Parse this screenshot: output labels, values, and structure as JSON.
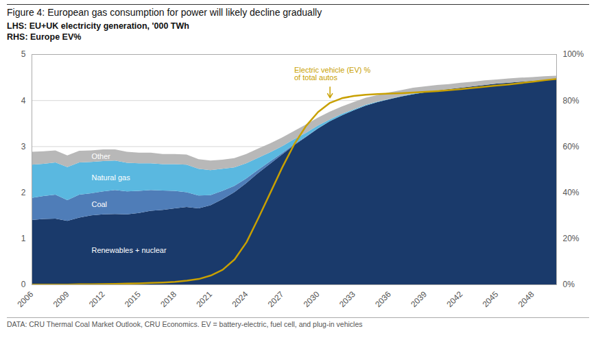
{
  "chart_data": {
    "type": "area",
    "title": "Figure 4: European gas consumption for power will likely decline gradually",
    "ylabel": "LHS: EU+UK electricity generation, '000 TWh",
    "y2label": "RHS: Europe EV%",
    "caption": "DATA: CRU Thermal Coal Market Outlook, CRU Economics. EV = battery-electric, fuel cell, and plug-in vehicles",
    "stacked": true,
    "grid": true,
    "x": [
      2006,
      2007,
      2008,
      2009,
      2010,
      2011,
      2012,
      2013,
      2014,
      2015,
      2016,
      2017,
      2018,
      2019,
      2020,
      2021,
      2022,
      2023,
      2024,
      2025,
      2026,
      2027,
      2028,
      2029,
      2030,
      2031,
      2032,
      2033,
      2034,
      2035,
      2036,
      2037,
      2038,
      2039,
      2040,
      2041,
      2042,
      2043,
      2044,
      2045,
      2046,
      2047,
      2048,
      2049,
      2050
    ],
    "series": [
      {
        "name": "Renewables + nuclear",
        "type": "area",
        "color": "#1a3a6b",
        "values": [
          1.4,
          1.42,
          1.43,
          1.38,
          1.45,
          1.5,
          1.52,
          1.53,
          1.52,
          1.55,
          1.6,
          1.62,
          1.65,
          1.68,
          1.65,
          1.72,
          1.85,
          2.0,
          2.2,
          2.42,
          2.62,
          2.82,
          3.02,
          3.2,
          3.38,
          3.54,
          3.67,
          3.78,
          3.88,
          3.96,
          4.02,
          4.08,
          4.13,
          4.17,
          4.21,
          4.24,
          4.27,
          4.3,
          4.33,
          4.36,
          4.38,
          4.4,
          4.42,
          4.44,
          4.46
        ]
      },
      {
        "name": "Coal",
        "type": "area",
        "color": "#4f7db8",
        "values": [
          0.48,
          0.5,
          0.52,
          0.45,
          0.5,
          0.48,
          0.5,
          0.52,
          0.5,
          0.48,
          0.45,
          0.42,
          0.38,
          0.32,
          0.28,
          0.22,
          0.18,
          0.14,
          0.1,
          0.07,
          0.05,
          0.03,
          0.02,
          0.01,
          0.01,
          0.0,
          0.0,
          0.0,
          0.0,
          0.0,
          0.0,
          0.0,
          0.0,
          0.0,
          0.0,
          0.0,
          0.0,
          0.0,
          0.0,
          0.0,
          0.0,
          0.0,
          0.0,
          0.0,
          0.0
        ]
      },
      {
        "name": "Natural gas",
        "type": "area",
        "color": "#5ab8e0",
        "values": [
          0.72,
          0.7,
          0.7,
          0.72,
          0.7,
          0.68,
          0.66,
          0.64,
          0.62,
          0.6,
          0.58,
          0.57,
          0.58,
          0.6,
          0.58,
          0.54,
          0.48,
          0.4,
          0.33,
          0.26,
          0.2,
          0.15,
          0.11,
          0.08,
          0.06,
          0.04,
          0.03,
          0.02,
          0.02,
          0.01,
          0.01,
          0.01,
          0.01,
          0.01,
          0.0,
          0.0,
          0.0,
          0.0,
          0.0,
          0.0,
          0.0,
          0.0,
          0.0,
          0.0,
          0.0
        ]
      },
      {
        "name": "Other",
        "type": "area",
        "color": "#b8b8b8",
        "values": [
          0.28,
          0.27,
          0.26,
          0.25,
          0.25,
          0.25,
          0.25,
          0.24,
          0.24,
          0.23,
          0.23,
          0.22,
          0.22,
          0.22,
          0.21,
          0.21,
          0.2,
          0.2,
          0.2,
          0.2,
          0.19,
          0.19,
          0.18,
          0.18,
          0.17,
          0.17,
          0.16,
          0.16,
          0.15,
          0.14,
          0.14,
          0.13,
          0.13,
          0.12,
          0.12,
          0.11,
          0.11,
          0.1,
          0.1,
          0.09,
          0.09,
          0.09,
          0.08,
          0.08,
          0.07
        ]
      },
      {
        "type": "line",
        "axis": "y2",
        "color": "#c8a000",
        "values": [
          0.001,
          0.001,
          0.001,
          0.001,
          0.002,
          0.002,
          0.003,
          0.004,
          0.005,
          0.006,
          0.008,
          0.01,
          0.013,
          0.018,
          0.025,
          0.04,
          0.065,
          0.11,
          0.185,
          0.29,
          0.4,
          0.51,
          0.61,
          0.69,
          0.75,
          0.79,
          0.81,
          0.82,
          0.825,
          0.828,
          0.83,
          0.832,
          0.835,
          0.838,
          0.841,
          0.845,
          0.85,
          0.855,
          0.86,
          0.865,
          0.87,
          0.876,
          0.882,
          0.888,
          0.894
        ]
      }
    ],
    "xlim": [
      2006,
      2050
    ],
    "xticks": [
      2006,
      2009,
      2012,
      2015,
      2018,
      2021,
      2024,
      2027,
      2030,
      2033,
      2036,
      2039,
      2042,
      2045,
      2048
    ],
    "ylim": [
      0,
      5
    ],
    "yticks": [
      0,
      1,
      2,
      3,
      4,
      5
    ],
    "y2lim": [
      0,
      1.0
    ],
    "y2ticks": [
      {
        "value": 0.0,
        "label": "0%"
      },
      {
        "value": 0.2,
        "label": "20%"
      },
      {
        "value": 0.4,
        "label": "40%"
      },
      {
        "value": 0.6,
        "label": "60%"
      },
      {
        "value": 0.8,
        "label": "80%"
      },
      {
        "value": 1.0,
        "label": "100%"
      }
    ],
    "annotations": [
      {
        "text": "Electric vehicle (EV) %\nof total autos",
        "x": 2031,
        "y": 0.812,
        "text_x": 2028,
        "text_y": 0.945,
        "axis": "y2"
      }
    ]
  }
}
